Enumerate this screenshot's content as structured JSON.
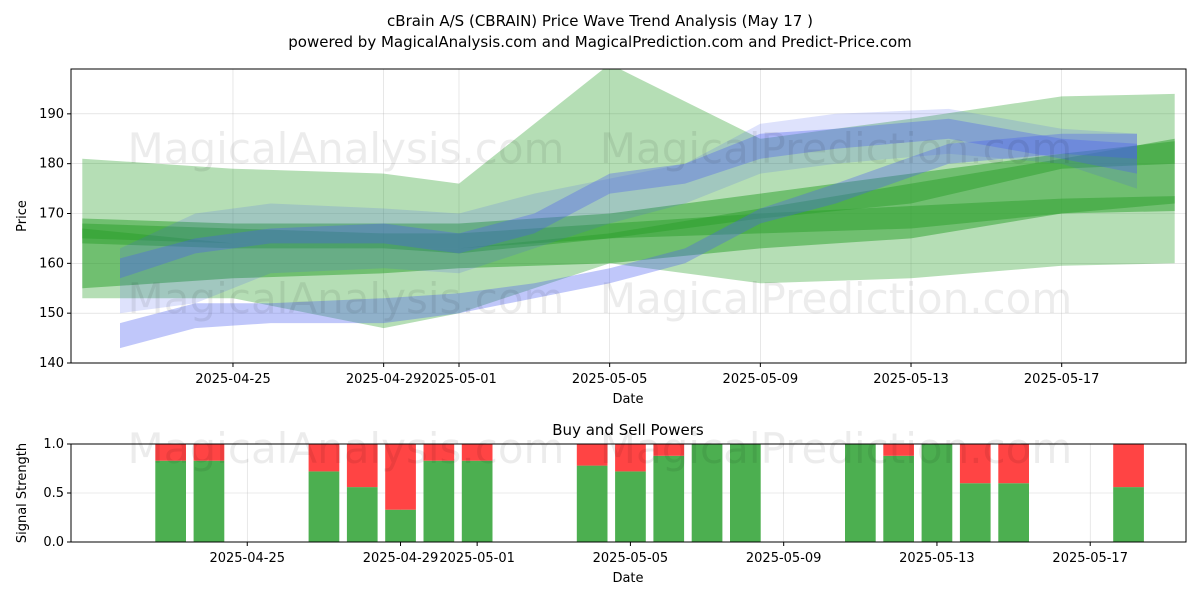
{
  "title_line1": "cBrain A/S (CBRAIN) Price Wave Trend Analysis (May 17 )",
  "title_line2": "powered by MagicalAnalysis.com and MagicalPrediction.com and Predict-Price.com",
  "watermarks": [
    "MagicalAnalysis.com",
    "MagicalPrediction.com"
  ],
  "colors": {
    "green_wave": "#2ca02c",
    "blue_wave": "#4a5ef0",
    "buy": "#4caf50",
    "sell": "#ff4444"
  },
  "chart_data": [
    {
      "type": "area",
      "title": "",
      "xlabel": "Date",
      "ylabel": "Price",
      "xlim": [
        "2025-04-21",
        "2025-05-20"
      ],
      "ylim": [
        140,
        199
      ],
      "yticks": [
        140,
        150,
        160,
        170,
        180,
        190
      ],
      "xticks": [
        "2025-04-25",
        "2025-04-29",
        "2025-05-01",
        "2025-05-05",
        "2025-05-09",
        "2025-05-13",
        "2025-05-17"
      ],
      "grid": true,
      "green_bands": [
        {
          "dates": [
            "2025-04-21",
            "2025-04-25",
            "2025-04-29",
            "2025-05-01",
            "2025-05-05",
            "2025-05-09",
            "2025-05-13",
            "2025-05-17",
            "2025-05-20"
          ],
          "upper": [
            169,
            168,
            168,
            168,
            170,
            174,
            178,
            182,
            184.5
          ],
          "lower": [
            164,
            163,
            163,
            163,
            165,
            169,
            172,
            179,
            180
          ]
        },
        {
          "dates": [
            "2025-04-21",
            "2025-04-25",
            "2025-04-29",
            "2025-05-01",
            "2025-05-05",
            "2025-05-09",
            "2025-05-13",
            "2025-05-17",
            "2025-05-20"
          ],
          "upper": [
            168,
            167,
            166,
            166,
            168,
            170,
            171.5,
            173,
            173.5
          ],
          "lower": [
            165,
            164,
            163,
            162,
            165,
            166,
            167,
            170,
            170.5
          ]
        },
        {
          "dates": [
            "2025-04-21",
            "2025-04-25",
            "2025-04-29",
            "2025-05-01",
            "2025-05-05",
            "2025-05-09",
            "2025-05-13",
            "2025-05-17",
            "2025-05-20"
          ],
          "upper": [
            181,
            179,
            178,
            176,
            200,
            185,
            189,
            193.5,
            194
          ],
          "lower": [
            153,
            153,
            147,
            150,
            160,
            156,
            157,
            159.5,
            160
          ]
        },
        {
          "dates": [
            "2025-04-21",
            "2025-04-25",
            "2025-04-29",
            "2025-05-01",
            "2025-05-05",
            "2025-05-09",
            "2025-05-13",
            "2025-05-17",
            "2025-05-20"
          ],
          "upper": [
            167,
            164,
            163,
            163,
            166,
            171,
            176,
            181,
            185
          ],
          "lower": [
            155,
            157,
            158,
            159,
            160,
            163,
            165,
            170,
            172
          ]
        }
      ],
      "blue_bands": [
        {
          "dates": [
            "2025-04-22",
            "2025-04-24",
            "2025-04-26",
            "2025-04-29",
            "2025-05-01",
            "2025-05-03",
            "2025-05-05",
            "2025-05-07",
            "2025-05-09",
            "2025-05-11",
            "2025-05-14",
            "2025-05-17",
            "2025-05-19"
          ],
          "upper": [
            161,
            165,
            167,
            168,
            166,
            170,
            178,
            180,
            186,
            187,
            189,
            185,
            184
          ],
          "lower": [
            157,
            162,
            164,
            164,
            162,
            166,
            174,
            176,
            181,
            183,
            185,
            181,
            178
          ]
        },
        {
          "dates": [
            "2025-04-22",
            "2025-04-24",
            "2025-04-26",
            "2025-04-29",
            "2025-05-01",
            "2025-05-03",
            "2025-05-05",
            "2025-05-07",
            "2025-05-09",
            "2025-05-11",
            "2025-05-14",
            "2025-05-17",
            "2025-05-19"
          ],
          "upper": [
            148,
            152,
            152,
            153,
            154,
            156,
            159,
            163,
            171,
            176,
            184,
            186,
            186
          ],
          "lower": [
            143,
            147,
            148,
            148,
            150,
            153,
            156,
            160,
            168,
            172,
            180,
            182,
            181
          ]
        },
        {
          "dates": [
            "2025-04-22",
            "2025-04-24",
            "2025-04-26",
            "2025-04-29",
            "2025-05-01",
            "2025-05-03",
            "2025-05-05",
            "2025-05-07",
            "2025-05-09",
            "2025-05-11",
            "2025-05-14",
            "2025-05-17",
            "2025-05-19"
          ],
          "upper": [
            163,
            170,
            172,
            171,
            170,
            174,
            177,
            180,
            188,
            190,
            191,
            187,
            186
          ],
          "lower": [
            150,
            152,
            158,
            159,
            158,
            163,
            168,
            172,
            178,
            180,
            182,
            180,
            175
          ]
        }
      ]
    },
    {
      "type": "bar",
      "title": "Buy and Sell Powers",
      "xlabel": "Date",
      "ylabel": "Signal Strength",
      "ylim": [
        0,
        1
      ],
      "yticks": [
        "0.0",
        "0.5",
        "1.0"
      ],
      "xticks": [
        "2025-04-25",
        "2025-04-29",
        "2025-05-01",
        "2025-05-05",
        "2025-05-09",
        "2025-05-13",
        "2025-05-17"
      ],
      "grid": true,
      "series": [
        {
          "name": "",
          "dates": [
            "2025-04-23",
            "2025-04-24",
            "2025-04-27",
            "2025-04-28",
            "2025-04-29",
            "2025-04-30",
            "2025-05-01",
            "2025-05-04",
            "2025-05-05",
            "2025-05-06",
            "2025-05-07",
            "2025-05-08",
            "2025-05-11",
            "2025-05-12",
            "2025-05-13",
            "2025-05-14",
            "2025-05-15",
            "2025-05-18"
          ],
          "buy": [
            0.83,
            0.83,
            0.72,
            0.56,
            0.33,
            0.83,
            0.83,
            0.78,
            0.72,
            0.88,
            1.0,
            1.0,
            1.0,
            0.88,
            1.0,
            0.6,
            0.6,
            0.56
          ]
        }
      ]
    }
  ]
}
